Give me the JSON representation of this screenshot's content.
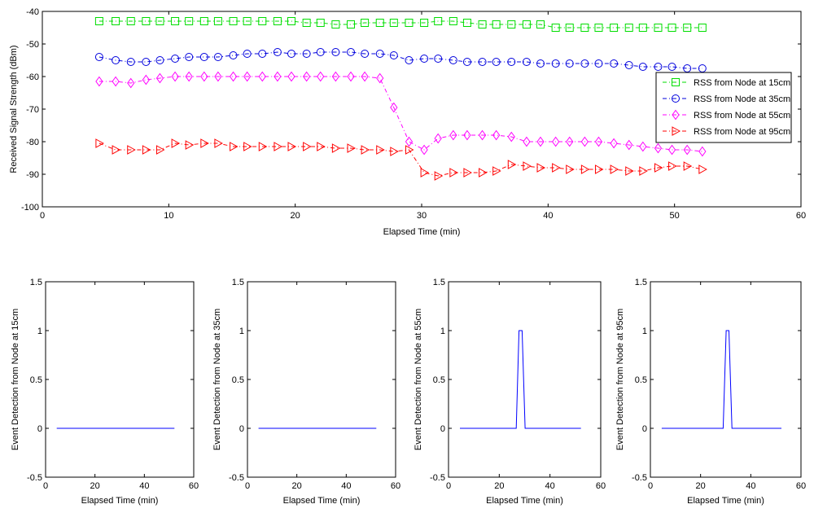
{
  "chart_data": [
    {
      "type": "line",
      "title": "",
      "xlabel": "Elapsed Time (min)",
      "ylabel": "Received Signal Strength (dBm)",
      "xlim": [
        0,
        60
      ],
      "ylim": [
        -100,
        -40
      ],
      "xticks": [
        0,
        10,
        20,
        30,
        40,
        50,
        60
      ],
      "yticks": [
        -100,
        -90,
        -80,
        -70,
        -60,
        -50,
        -40
      ],
      "legend_position": "right",
      "x": [
        4.5,
        5.8,
        7.0,
        8.2,
        9.3,
        10.5,
        11.6,
        12.8,
        13.9,
        15.1,
        16.2,
        17.4,
        18.6,
        19.7,
        20.9,
        22.0,
        23.2,
        24.4,
        25.5,
        26.7,
        27.8,
        29.0,
        30.2,
        31.3,
        32.5,
        33.6,
        34.8,
        35.9,
        37.1,
        38.3,
        39.4,
        40.6,
        41.7,
        42.9,
        44.0,
        45.2,
        46.4,
        47.5,
        48.7,
        49.8,
        51.0,
        52.2
      ],
      "series": [
        {
          "name": "RSS from Node at 15cm",
          "color": "#00dd00",
          "marker": "square",
          "values": [
            -43,
            -43,
            -43,
            -43,
            -43,
            -43,
            -43,
            -43,
            -43,
            -43,
            -43,
            -43,
            -43,
            -43,
            -43.5,
            -43.5,
            -44,
            -44,
            -43.5,
            -43.5,
            -43.5,
            -43.5,
            -43.5,
            -43,
            -43,
            -43.5,
            -44,
            -44,
            -44,
            -44,
            -44,
            -45,
            -45,
            -45,
            -45,
            -45,
            -45,
            -45,
            -45,
            -45,
            -45,
            -45
          ]
        },
        {
          "name": "RSS from Node at 35cm",
          "color": "#0000dd",
          "marker": "circle",
          "values": [
            -54,
            -55,
            -55.5,
            -55.5,
            -55,
            -54.5,
            -54,
            -54,
            -54,
            -53.5,
            -53,
            -53,
            -52.5,
            -53,
            -53,
            -52.5,
            -52.5,
            -52.5,
            -53,
            -53,
            -53.5,
            -55,
            -54.5,
            -54.5,
            -55,
            -55.5,
            -55.5,
            -55.5,
            -55.5,
            -55.5,
            -56,
            -56,
            -56,
            -56,
            -56,
            -56,
            -56.5,
            -57,
            -57,
            -57,
            -57.5,
            -57.5
          ]
        },
        {
          "name": "RSS from Node at 55cm",
          "color": "#ff00ff",
          "marker": "diamond",
          "values": [
            -61.5,
            -61.5,
            -62,
            -61,
            -60.5,
            -60,
            -60,
            -60,
            -60,
            -60,
            -60,
            -60,
            -60,
            -60,
            -60,
            -60,
            -60,
            -60,
            -60,
            -60.5,
            -69.5,
            -80,
            -82.5,
            -79,
            -78,
            -78,
            -78,
            -78,
            -78.5,
            -80,
            -80,
            -80,
            -80,
            -80,
            -80,
            -80.5,
            -81,
            -81.5,
            -82,
            -82.5,
            -82.5,
            -83
          ]
        },
        {
          "name": "RSS from Node at 95cm",
          "color": "#ff0000",
          "marker": "triangle-right",
          "values": [
            -80.5,
            -82.5,
            -82.5,
            -82.5,
            -82.5,
            -80.5,
            -81,
            -80.5,
            -80.5,
            -81.5,
            -81.5,
            -81.5,
            -81.5,
            -81.5,
            -81.5,
            -81.5,
            -82,
            -82,
            -82.5,
            -82.5,
            -83,
            -82.5,
            -89.5,
            -90.5,
            -89.5,
            -89.5,
            -89.5,
            -89,
            -87,
            -87.5,
            -88,
            -88,
            -88.5,
            -88.5,
            -88.5,
            -88.5,
            -89,
            -89,
            -88,
            -87.5,
            -87.5,
            -88.5
          ]
        }
      ]
    },
    {
      "type": "line",
      "title": "",
      "xlabel": "Elapsed Time (min)",
      "ylabel": "Event Detection from Node at 15cm",
      "xlim": [
        0,
        60
      ],
      "ylim": [
        -0.5,
        1.5
      ],
      "xticks": [
        0,
        20,
        40,
        60
      ],
      "yticks": [
        -0.5,
        0,
        0.5,
        1,
        1.5
      ],
      "ytick_labels": [
        "-0.5",
        "0",
        "0.5",
        "1",
        "1.5"
      ],
      "color": "#0000ff",
      "x": [
        4.5,
        52.2
      ],
      "values": [
        0,
        0
      ]
    },
    {
      "type": "line",
      "title": "",
      "xlabel": "Elapsed Time (min)",
      "ylabel": "Event Detection from Node at 35cm",
      "xlim": [
        0,
        60
      ],
      "ylim": [
        -0.5,
        1.5
      ],
      "xticks": [
        0,
        20,
        40,
        60
      ],
      "yticks": [
        -0.5,
        0,
        0.5,
        1,
        1.5
      ],
      "ytick_labels": [
        "-0.5",
        "0",
        "0.5",
        "1",
        "1.5"
      ],
      "color": "#0000ff",
      "x": [
        4.5,
        52.2
      ],
      "values": [
        0,
        0
      ]
    },
    {
      "type": "line",
      "title": "",
      "xlabel": "Elapsed Time (min)",
      "ylabel": "Event Detection from Node at 55cm",
      "xlim": [
        0,
        60
      ],
      "ylim": [
        -0.5,
        1.5
      ],
      "xticks": [
        0,
        20,
        40,
        60
      ],
      "yticks": [
        -0.5,
        0,
        0.5,
        1,
        1.5
      ],
      "ytick_labels": [
        "-0.5",
        "0",
        "0.5",
        "1",
        "1.5"
      ],
      "color": "#0000ff",
      "x": [
        4.5,
        26.7,
        27.8,
        29.0,
        30.2,
        52.2
      ],
      "values": [
        0,
        0,
        1,
        1,
        0,
        0
      ]
    },
    {
      "type": "line",
      "title": "",
      "xlabel": "Elapsed Time (min)",
      "ylabel": "Event Detection from Node at 95cm",
      "xlim": [
        0,
        60
      ],
      "ylim": [
        -0.5,
        1.5
      ],
      "xticks": [
        0,
        20,
        40,
        60
      ],
      "yticks": [
        -0.5,
        0,
        0.5,
        1,
        1.5
      ],
      "ytick_labels": [
        "-0.5",
        "0",
        "0.5",
        "1",
        "1.5"
      ],
      "color": "#0000ff",
      "x": [
        4.5,
        29.0,
        30.2,
        31.3,
        32.5,
        52.2
      ],
      "values": [
        0,
        0,
        1,
        1,
        0,
        0
      ]
    }
  ]
}
